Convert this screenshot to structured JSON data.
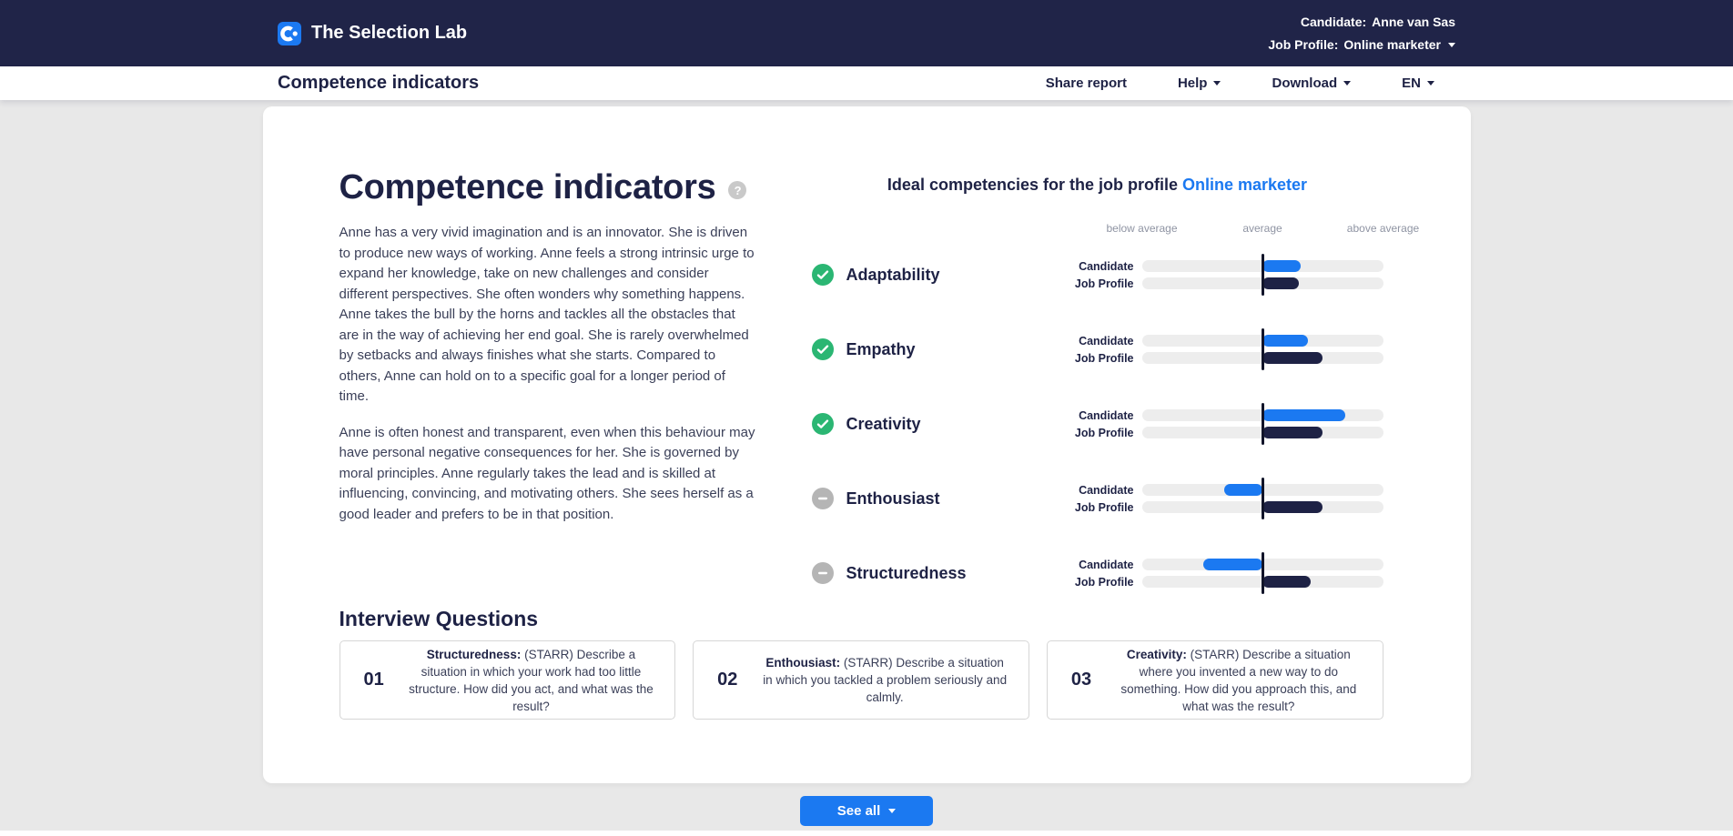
{
  "header": {
    "brand": "The Selection Lab",
    "candidate_label": "Candidate:",
    "candidate_name": "Anne van Sas",
    "job_profile_label": "Job Profile:",
    "job_profile_value": "Online marketer"
  },
  "toolbar": {
    "title": "Competence indicators",
    "share_label": "Share report",
    "help_label": "Help",
    "download_label": "Download",
    "language_label": "EN"
  },
  "main": {
    "title": "Competence indicators",
    "paragraphs": [
      "Anne has a very vivid imagination and is an innovator. She is driven to produce new ways of working. Anne feels a strong intrinsic urge to expand her knowledge, take on new challenges and consider different perspectives. She often wonders why something happens. Anne takes the bull by the horns and tackles all the obstacles that are in the way of achieving her end goal. She is rarely overwhelmed by setbacks and always finishes what she starts. Compared to others, Anne can hold on to a specific goal for a longer period of time.",
      "Anne is often honest and transparent, even when this behaviour may have personal negative consequences for her. She is governed by moral principles. Anne regularly takes the lead and is skilled at influencing, convincing, and motivating others. She sees herself as a good leader and prefers to be in that position."
    ],
    "chart_heading_prefix": "Ideal competencies for the job profile",
    "chart_heading_link": "Online marketer"
  },
  "chart_data": {
    "type": "bar",
    "orientation": "horizontal",
    "value_scale": "deviation from average, range -1 (far below average) to 1 (far above average)",
    "scale_labels": [
      "below average",
      "average",
      "above average"
    ],
    "row_labels": [
      "Candidate",
      "Job Profile"
    ],
    "competencies": [
      {
        "name": "Adaptability",
        "status": "match",
        "candidate": 0.32,
        "job_profile": 0.3
      },
      {
        "name": "Empathy",
        "status": "match",
        "candidate": 0.38,
        "job_profile": 0.5
      },
      {
        "name": "Creativity",
        "status": "match",
        "candidate": 0.69,
        "job_profile": 0.5
      },
      {
        "name": "Enthousiast",
        "status": "no_match",
        "candidate": -0.32,
        "job_profile": 0.5
      },
      {
        "name": "Structuredness",
        "status": "no_match",
        "candidate": -0.49,
        "job_profile": 0.4
      }
    ],
    "colors": {
      "candidate": "#1b79f1",
      "job_profile": "#1e2245",
      "track": "#ededed",
      "match": "#2bb673",
      "no_match": "#b5b5b5",
      "average_line": "#12152a"
    }
  },
  "interview": {
    "title": "Interview Questions",
    "questions": [
      {
        "number": "01",
        "competency": "Structuredness:",
        "text": "(STARR) Describe a situation in which your work had too little structure. How did you act, and what was the result?"
      },
      {
        "number": "02",
        "competency": "Enthousiast:",
        "text": "(STARR) Describe a situation in which you tackled a problem seriously and calmly."
      },
      {
        "number": "03",
        "competency": "Creativity:",
        "text": "(STARR) Describe a situation where you invented a new way to do something. How did you approach this, and what was the result?"
      }
    ]
  },
  "footer": {
    "see_all_label": "See all"
  }
}
